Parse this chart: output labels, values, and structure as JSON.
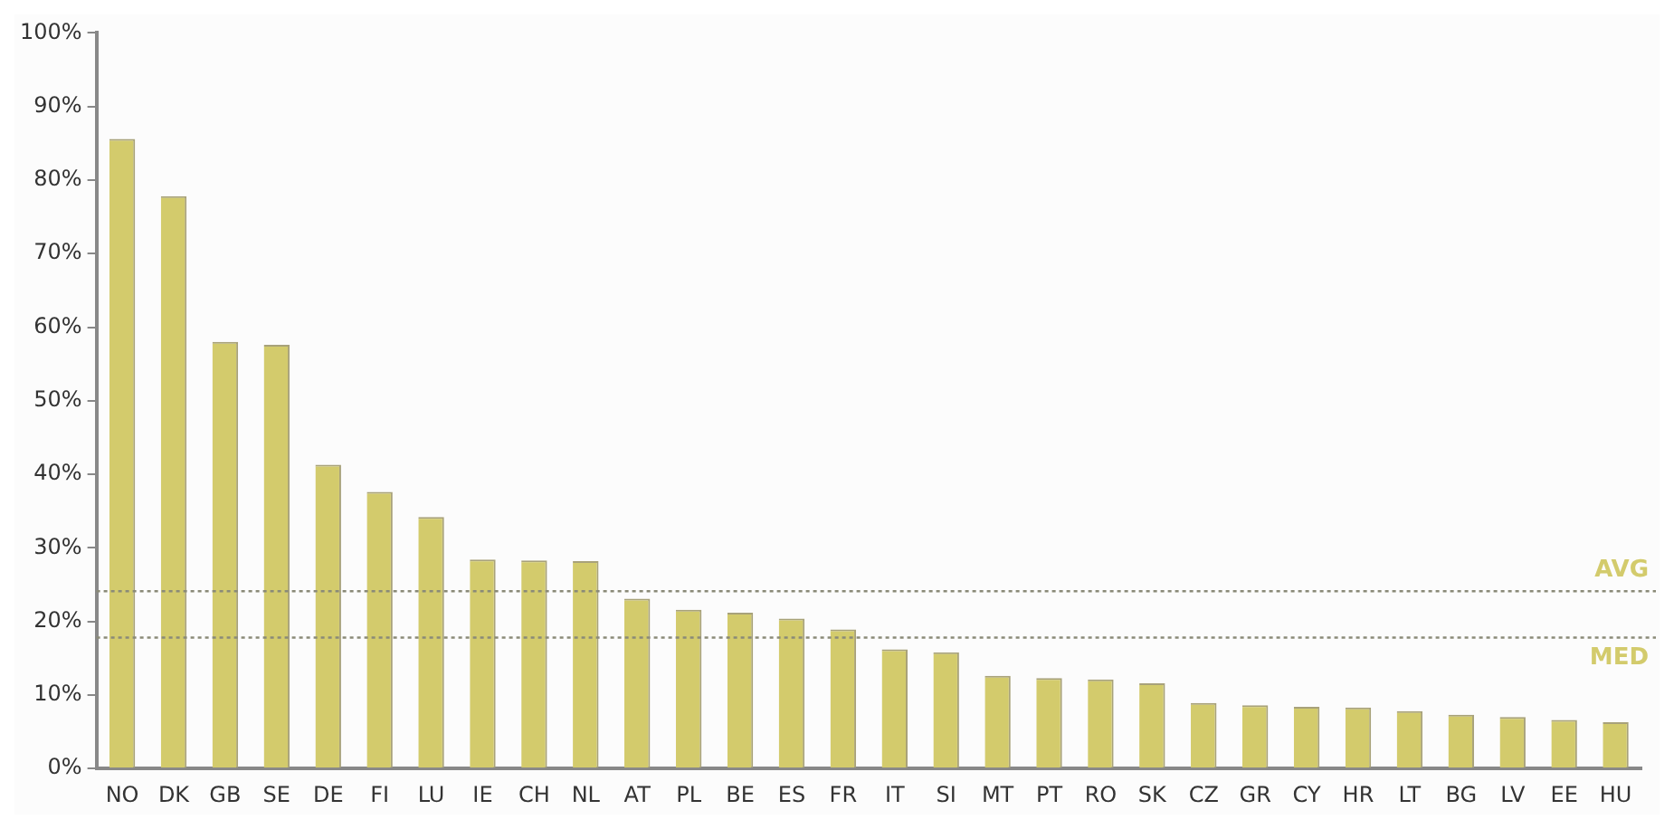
{
  "chart_data": {
    "type": "bar",
    "categories": [
      "NO",
      "DK",
      "GB",
      "SE",
      "DE",
      "FI",
      "LU",
      "IE",
      "CH",
      "NL",
      "AT",
      "PL",
      "BE",
      "ES",
      "FR",
      "IT",
      "SI",
      "MT",
      "PT",
      "RO",
      "SK",
      "CZ",
      "GR",
      "CY",
      "HR",
      "LT",
      "BG",
      "LV",
      "EE",
      "HU"
    ],
    "values": [
      85.6,
      77.8,
      58.0,
      57.6,
      41.3,
      37.6,
      34.2,
      28.4,
      28.3,
      28.2,
      23.1,
      21.6,
      21.2,
      20.4,
      18.9,
      16.2,
      15.8,
      12.6,
      12.3,
      12.1,
      11.6,
      8.9,
      8.6,
      8.4,
      8.3,
      7.8,
      7.3,
      7.0,
      6.6,
      6.3
    ],
    "color": "#d3cb6c",
    "ylim": [
      0,
      100
    ],
    "yticks": [
      {
        "value": 0,
        "label": "0%"
      },
      {
        "value": 10,
        "label": "10%"
      },
      {
        "value": 20,
        "label": "20%"
      },
      {
        "value": 30,
        "label": "30%"
      },
      {
        "value": 40,
        "label": "40%"
      },
      {
        "value": 50,
        "label": "50%"
      },
      {
        "value": 60,
        "label": "60%"
      },
      {
        "value": 70,
        "label": "70%"
      },
      {
        "value": 80,
        "label": "80%"
      },
      {
        "value": 90,
        "label": "90%"
      },
      {
        "value": 100,
        "label": "100%"
      }
    ],
    "ref_lines": [
      {
        "axis": "y",
        "value": 24.1,
        "label": "AVG",
        "color": "#8a8a78",
        "line_style": "dotted"
      },
      {
        "axis": "y",
        "value": 17.8,
        "label": "MED",
        "color": "#8a8a78",
        "line_style": "dotted"
      }
    ],
    "grid": false,
    "legend": false
  }
}
